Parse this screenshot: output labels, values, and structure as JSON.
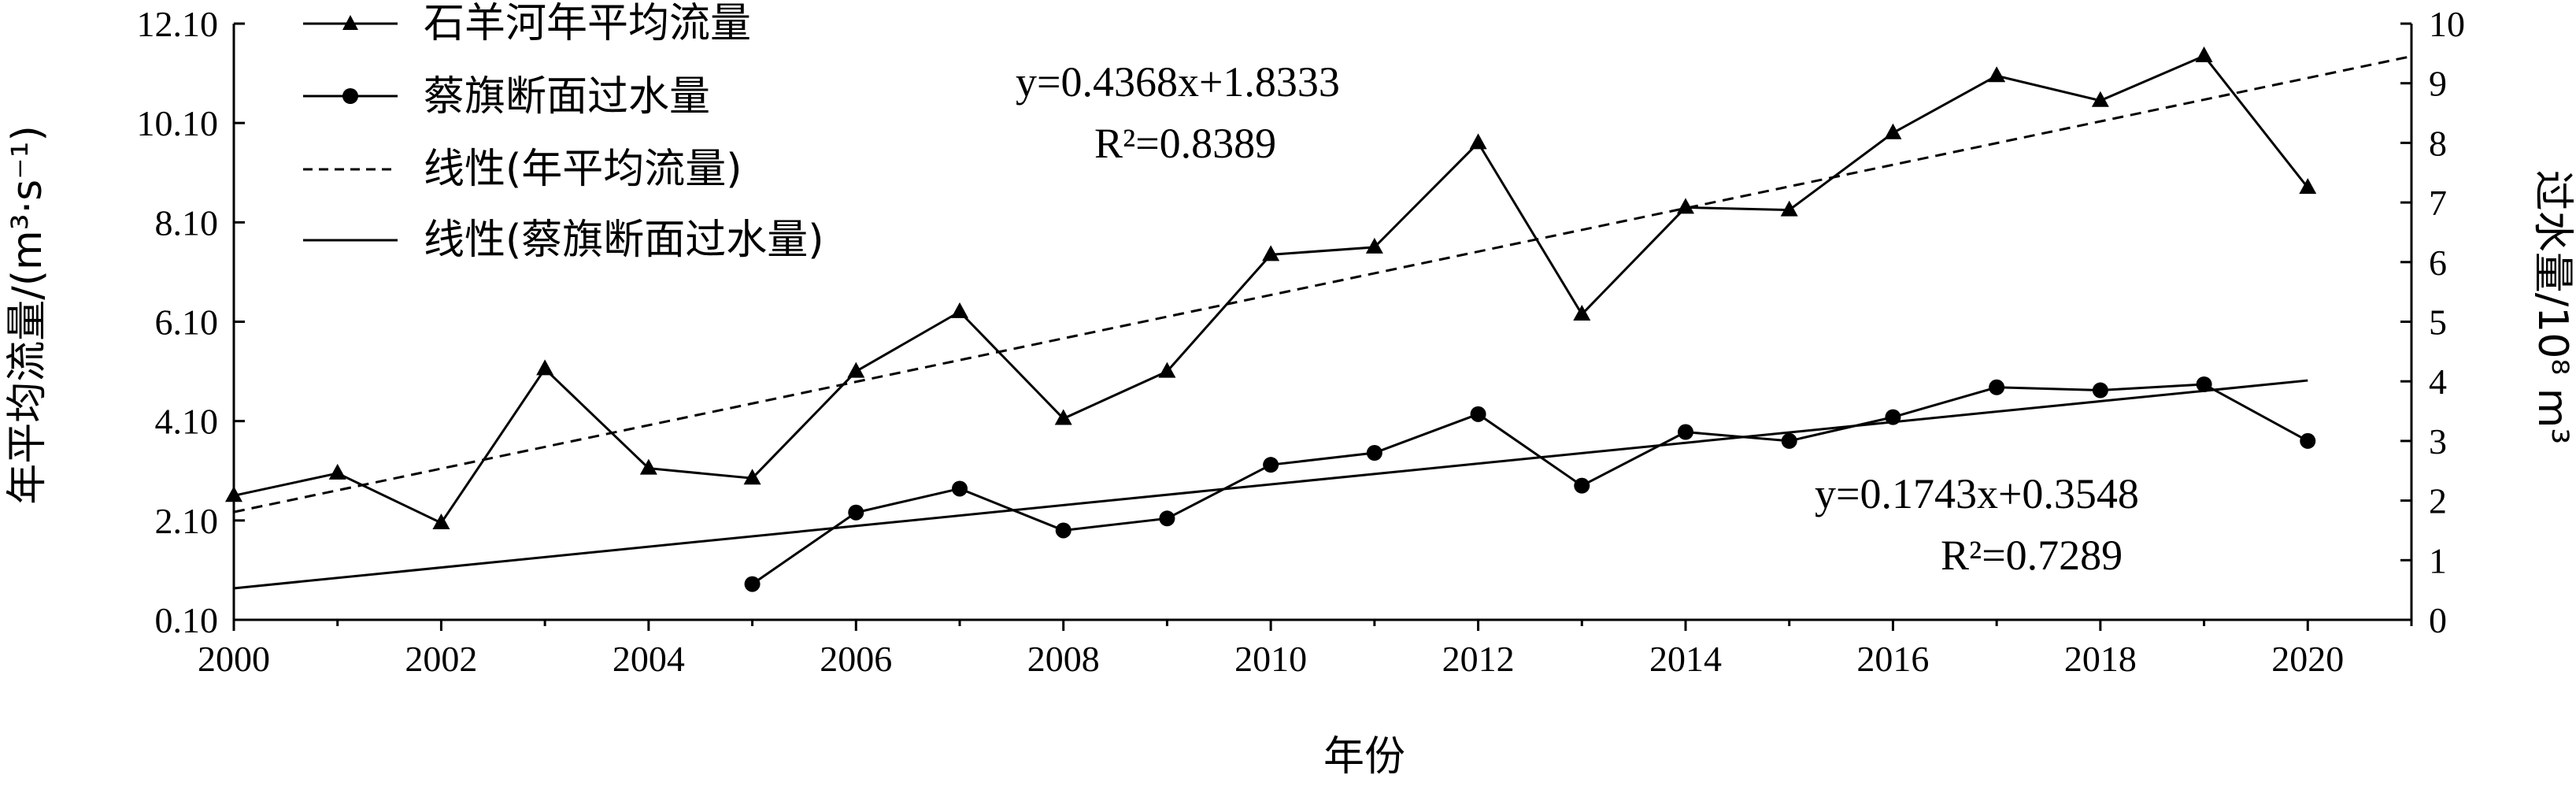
{
  "chart_data": {
    "type": "line",
    "xlabel": "年份",
    "ylabel_left": "年平均流量/(m³·s⁻¹)",
    "ylabel_right": "过水量/10⁸ m³",
    "x_ticks": [
      "2000",
      "2002",
      "2004",
      "2006",
      "2008",
      "2010",
      "2012",
      "2014",
      "2016",
      "2018",
      "2020"
    ],
    "y_left_ticks": [
      "0.10",
      "2.10",
      "4.10",
      "6.10",
      "8.10",
      "10.10",
      "12.10"
    ],
    "y_right_ticks": [
      "0",
      "1",
      "2",
      "3",
      "4",
      "5",
      "6",
      "7",
      "8",
      "9",
      "10"
    ],
    "xlim": [
      2000,
      2021
    ],
    "ylim_left": [
      0.1,
      12.1
    ],
    "ylim_right": [
      0,
      10
    ],
    "series": [
      {
        "name": "石羊河年平均流量",
        "axis": "left",
        "marker": "triangle",
        "x": [
          2000,
          2001,
          2002,
          2003,
          2004,
          2005,
          2006,
          2007,
          2008,
          2009,
          2010,
          2011,
          2012,
          2013,
          2014,
          2015,
          2016,
          2017,
          2018,
          2019,
          2020
        ],
        "values": [
          2.6,
          3.05,
          2.05,
          5.15,
          3.15,
          2.95,
          5.1,
          6.3,
          4.15,
          5.1,
          7.45,
          7.6,
          9.7,
          6.25,
          8.4,
          8.35,
          9.9,
          11.05,
          10.55,
          11.45,
          8.8
        ]
      },
      {
        "name": "蔡旗断面过水量",
        "axis": "right",
        "marker": "circle",
        "x": [
          2005,
          2006,
          2007,
          2008,
          2009,
          2010,
          2011,
          2012,
          2013,
          2014,
          2015,
          2016,
          2017,
          2018,
          2019,
          2020
        ],
        "values": [
          0.6,
          1.8,
          2.2,
          1.5,
          1.7,
          2.6,
          2.8,
          3.45,
          2.25,
          3.15,
          3.0,
          3.4,
          3.9,
          3.85,
          3.95,
          3.0
        ]
      }
    ],
    "trendlines": [
      {
        "name": "线性(年平均流量)",
        "axis": "left",
        "style": "dashed",
        "slope": 0.4368,
        "intercept": 1.8333,
        "equation": "y=0.4368x+1.8333",
        "r2": "R²=0.8389"
      },
      {
        "name": "线性(蔡旗断面过水量)",
        "axis": "right",
        "style": "solid",
        "slope": 0.1743,
        "intercept": 0.3548,
        "equation": "y=0.1743x+0.3548",
        "r2": "R²=0.7289"
      }
    ],
    "legend_position": "top-left",
    "grid": false
  }
}
